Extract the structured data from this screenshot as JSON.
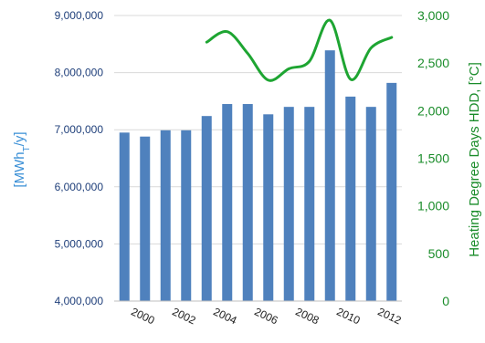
{
  "chart_data": {
    "type": "bar",
    "xlabel": "",
    "x_tick_labels": [
      "2000",
      "2002",
      "2004",
      "2006",
      "2008",
      "2010",
      "2012"
    ],
    "categories": [
      1999,
      2000,
      2001,
      2002,
      2003,
      2004,
      2005,
      2006,
      2007,
      2008,
      2009,
      2010,
      2011,
      2012
    ],
    "y_left": {
      "label_main": "[MWh",
      "label_sub": "T",
      "label_end": "/y]",
      "ylim": [
        4000000,
        9000000
      ],
      "ticks": [
        "4,000,000",
        "5,000,000",
        "6,000,000",
        "7,000,000",
        "8,000,000",
        "9,000,000"
      ],
      "tick_values": [
        4000000,
        5000000,
        6000000,
        7000000,
        8000000,
        9000000
      ]
    },
    "y_right": {
      "label": "Heating Degree Days HDD, [°C]",
      "ylim": [
        0,
        3000
      ],
      "ticks": [
        "0",
        "500",
        "1,000",
        "1,500",
        "2,000",
        "2,500",
        "3,000"
      ],
      "tick_values": [
        0,
        500,
        1000,
        1500,
        2000,
        2500,
        3000
      ]
    },
    "series": [
      {
        "type": "bar",
        "axis": "left",
        "values": [
          6950000,
          6880000,
          6990000,
          6990000,
          7240000,
          7450000,
          7450000,
          7270000,
          7400000,
          7400000,
          8390000,
          7580000,
          7400000,
          7820000
        ]
      },
      {
        "type": "line",
        "axis": "right",
        "x": [
          2003,
          2004,
          2005,
          2006,
          2007,
          2008,
          2009,
          2010,
          2011,
          2012
        ],
        "values": [
          2720,
          2830,
          2600,
          2320,
          2440,
          2520,
          2950,
          2330,
          2660,
          2770
        ]
      }
    ],
    "bar_color": "#4f81bd",
    "line_color": "#1ea532",
    "grid": "horizontal",
    "legend": "none"
  }
}
